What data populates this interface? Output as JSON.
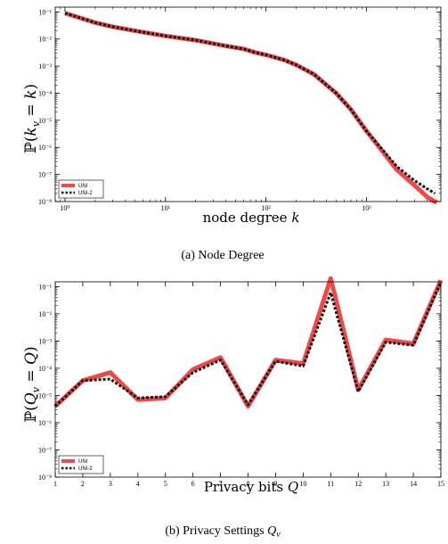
{
  "chart_data": [
    {
      "type": "line",
      "xlabel": "node degree k",
      "ylabel": "ℙ(k_v = k)",
      "caption": "(a)  Node Degree",
      "xscale": "log",
      "yscale": "log",
      "xlim": [
        0.8,
        5500
      ],
      "ylim": [
        1e-08,
        0.15
      ],
      "xticks": [
        {
          "v": 1,
          "label": "10⁰"
        },
        {
          "v": 10,
          "label": "10¹"
        },
        {
          "v": 100,
          "label": "10²"
        },
        {
          "v": 1000,
          "label": "10³"
        }
      ],
      "yticks": [
        {
          "v": 0.1,
          "label": "10⁻¹"
        },
        {
          "v": 0.01,
          "label": "10⁻²"
        },
        {
          "v": 0.001,
          "label": "10⁻³"
        },
        {
          "v": 0.0001,
          "label": "10⁻⁴"
        },
        {
          "v": 1e-05,
          "label": "10⁻⁵"
        },
        {
          "v": 1e-06,
          "label": "10⁻⁶"
        },
        {
          "v": 1e-07,
          "label": "10⁻⁷"
        },
        {
          "v": 1e-08,
          "label": "10⁻⁸"
        }
      ],
      "legend_position": "bottom-left",
      "series": [
        {
          "name": "UNI",
          "color": "#f04848",
          "style": "solid",
          "x": [
            1,
            2,
            3,
            5,
            10,
            20,
            40,
            60,
            80,
            100,
            150,
            200,
            300,
            500,
            700,
            1000,
            1500,
            2000,
            3000,
            4000,
            5000
          ],
          "y": [
            0.09,
            0.04,
            0.028,
            0.02,
            0.013,
            0.009,
            0.0055,
            0.0043,
            0.0031,
            0.0026,
            0.0017,
            0.0011,
            0.0005,
            0.0001,
            2.5e-05,
            4e-06,
            6e-07,
            1.5e-07,
            4e-08,
            1.5e-08,
            9e-09
          ]
        },
        {
          "name": "UNI-2",
          "color": "#111111",
          "style": "dotted",
          "x": [
            1,
            2,
            3,
            5,
            10,
            20,
            40,
            60,
            80,
            100,
            150,
            200,
            300,
            500,
            700,
            1000,
            1500,
            2000,
            3000,
            4000,
            4800
          ],
          "y": [
            0.09,
            0.04,
            0.028,
            0.02,
            0.013,
            0.009,
            0.0055,
            0.0043,
            0.0031,
            0.0026,
            0.0017,
            0.0011,
            0.0005,
            0.0001,
            2.5e-05,
            4e-06,
            7e-07,
            2e-07,
            6e-08,
            3e-08,
            2e-08
          ]
        }
      ]
    },
    {
      "type": "line",
      "xlabel": "Privacy bits Q",
      "ylabel": "ℙ(Q_v = Q)",
      "caption": "(b)  Privacy Settings Q_v",
      "xscale": "linear",
      "yscale": "log",
      "xlim": [
        1,
        15
      ],
      "ylim": [
        1e-08,
        0.15
      ],
      "xticks": [
        {
          "v": 1,
          "label": "1"
        },
        {
          "v": 2,
          "label": "2"
        },
        {
          "v": 3,
          "label": "3"
        },
        {
          "v": 4,
          "label": "4"
        },
        {
          "v": 5,
          "label": "5"
        },
        {
          "v": 6,
          "label": "6"
        },
        {
          "v": 7,
          "label": "7"
        },
        {
          "v": 8,
          "label": "8"
        },
        {
          "v": 9,
          "label": "9"
        },
        {
          "v": 10,
          "label": "10"
        },
        {
          "v": 11,
          "label": "11"
        },
        {
          "v": 12,
          "label": "12"
        },
        {
          "v": 13,
          "label": "13"
        },
        {
          "v": 14,
          "label": "14"
        },
        {
          "v": 15,
          "label": "15"
        }
      ],
      "yticks": [
        {
          "v": 0.1,
          "label": "10⁻¹"
        },
        {
          "v": 0.01,
          "label": "10⁻²"
        },
        {
          "v": 0.001,
          "label": "10⁻³"
        },
        {
          "v": 0.0001,
          "label": "10⁻⁴"
        },
        {
          "v": 1e-05,
          "label": "10⁻⁵"
        },
        {
          "v": 1e-06,
          "label": "10⁻⁶"
        },
        {
          "v": 1e-07,
          "label": "10⁻⁷"
        },
        {
          "v": 1e-08,
          "label": "10⁻⁸"
        }
      ],
      "legend_position": "bottom-left",
      "series": [
        {
          "name": "UNI",
          "color": "#f04848",
          "style": "solid",
          "x": [
            1,
            2,
            3,
            4,
            5,
            6,
            7,
            8,
            9,
            10,
            11,
            12,
            13,
            14,
            15
          ],
          "y": [
            4e-06,
            3.5e-05,
            7e-05,
            7e-06,
            8e-06,
            9e-05,
            0.00025,
            4e-06,
            0.0002,
            0.00015,
            0.2,
            1.6e-05,
            0.0011,
            0.0008,
            0.17
          ]
        },
        {
          "name": "UNI-2",
          "color": "#111111",
          "style": "dotted",
          "x": [
            1,
            2,
            3,
            4,
            5,
            6,
            7,
            8,
            9,
            10,
            11,
            12,
            13,
            14,
            15
          ],
          "y": [
            4e-06,
            3.5e-05,
            4e-05,
            8e-06,
            9e-06,
            7e-05,
            0.0002,
            4.5e-06,
            0.00018,
            0.00012,
            0.06,
            1.4e-05,
            0.0009,
            0.0007,
            0.15
          ]
        }
      ]
    }
  ]
}
